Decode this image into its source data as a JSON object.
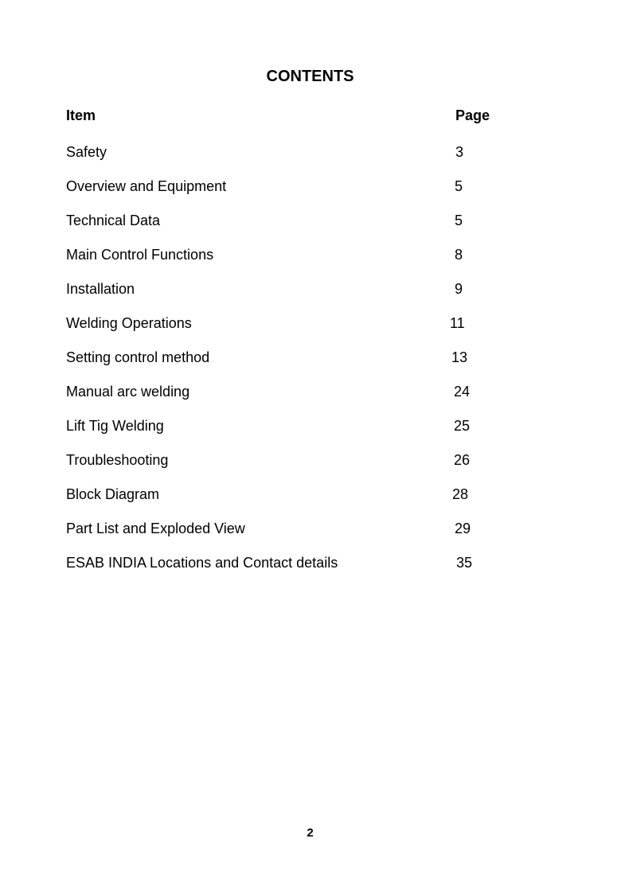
{
  "title": "CONTENTS",
  "header": {
    "item": "Item",
    "page": "Page"
  },
  "entries": [
    {
      "item": "Safety",
      "page": "3"
    },
    {
      "item": "Overview and Equipment",
      "page": "5"
    },
    {
      "item": "Technical Data",
      "page": "5"
    },
    {
      "item": "Main Control Functions",
      "page": "8"
    },
    {
      "item": "Installation",
      "page": "9"
    },
    {
      "item": "Welding Operations",
      "page": "11"
    },
    {
      "item": "Setting control method",
      "page": "13"
    },
    {
      "item": "Manual arc welding",
      "page": "24"
    },
    {
      "item": "Lift Tig Welding",
      "page": "25"
    },
    {
      "item": "Troubleshooting",
      "page": "26"
    },
    {
      "item": "Block Diagram",
      "page": "28"
    },
    {
      "item": "Part List and Exploded View",
      "page": "29"
    },
    {
      "item": "ESAB INDIA Locations and Contact details",
      "page": "35"
    }
  ],
  "page_number": "2"
}
